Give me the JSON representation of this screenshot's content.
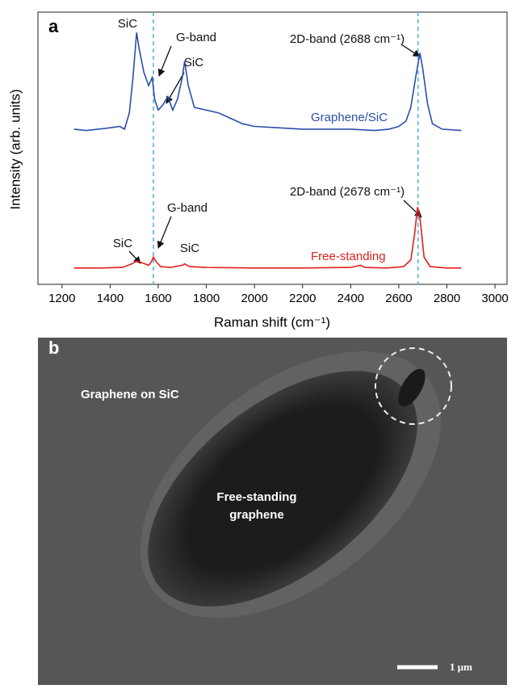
{
  "chart_data": {
    "type": "line",
    "panel_label": "a",
    "xlabel": "Raman shift (cm⁻¹)",
    "ylabel": "Intensity (arb. units)",
    "xlim": [
      1100,
      3050
    ],
    "xticks": [
      1200,
      1400,
      1600,
      1800,
      2000,
      2200,
      2400,
      2600,
      2800,
      3000
    ],
    "ylim": [
      0,
      10
    ],
    "vlines": [
      1580,
      2680
    ],
    "vline_color": "#4fb6e0",
    "series": [
      {
        "name": "Graphene/SiC",
        "color": "#2b4ea8",
        "x": [
          1250,
          1300,
          1350,
          1400,
          1440,
          1460,
          1480,
          1495,
          1510,
          1520,
          1540,
          1560,
          1575,
          1585,
          1600,
          1620,
          1640,
          1660,
          1680,
          1700,
          1710,
          1725,
          1750,
          1800,
          1850,
          1900,
          1950,
          2000,
          2100,
          2200,
          2300,
          2400,
          2500,
          2560,
          2600,
          2630,
          2650,
          2670,
          2688,
          2700,
          2720,
          2740,
          2780,
          2860
        ],
        "values": [
          5.7,
          5.65,
          5.7,
          5.75,
          5.8,
          5.7,
          6.3,
          7.6,
          9.25,
          8.7,
          7.8,
          7.3,
          7.6,
          6.8,
          6.4,
          6.6,
          6.9,
          6.4,
          6.8,
          7.6,
          8.2,
          7.3,
          6.5,
          6.4,
          6.3,
          6.1,
          5.9,
          5.8,
          5.75,
          5.7,
          5.7,
          5.7,
          5.65,
          5.7,
          5.8,
          6.0,
          6.5,
          7.6,
          8.5,
          7.9,
          6.6,
          5.9,
          5.7,
          5.65
        ]
      },
      {
        "name": "Free-standing",
        "color": "#e0201c",
        "x": [
          1250,
          1350,
          1450,
          1490,
          1510,
          1530,
          1560,
          1570,
          1580,
          1590,
          1610,
          1650,
          1700,
          1710,
          1730,
          1800,
          2000,
          2200,
          2400,
          2440,
          2460,
          2550,
          2620,
          2650,
          2665,
          2678,
          2690,
          2705,
          2730,
          2800,
          2860
        ],
        "values": [
          0.6,
          0.6,
          0.62,
          0.75,
          0.85,
          0.8,
          0.7,
          0.8,
          1.0,
          0.85,
          0.65,
          0.62,
          0.7,
          0.75,
          0.65,
          0.62,
          0.6,
          0.6,
          0.62,
          0.7,
          0.62,
          0.6,
          0.65,
          0.9,
          1.8,
          2.84,
          2.3,
          1.0,
          0.65,
          0.6,
          0.6
        ]
      }
    ],
    "annotations": [
      "SiC",
      "G-band",
      "SiC",
      "2D-band (2688 cm⁻¹)",
      "2D-band (2678 cm⁻¹)",
      "G-band",
      "SiC",
      "SiC"
    ]
  },
  "image": {
    "panel_label": "b",
    "region_label": "Graphene on SiC",
    "center_label": [
      "Free-standing",
      "graphene"
    ],
    "scale_bar": "1 μm"
  }
}
